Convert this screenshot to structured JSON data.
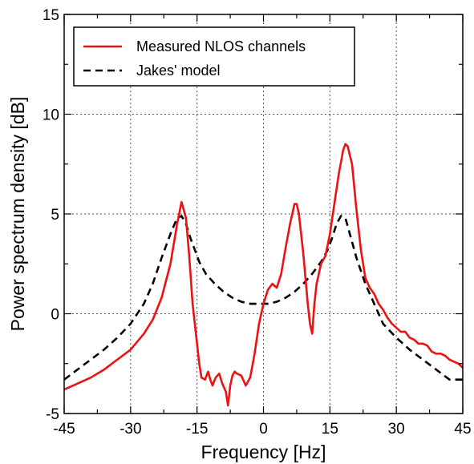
{
  "chart_data": {
    "type": "line",
    "xlabel": "Frequency [Hz]",
    "ylabel": "Power spectrum density [dB]",
    "xlim": [
      -45,
      45
    ],
    "ylim": [
      -5,
      15
    ],
    "xticks": [
      -45,
      -30,
      -15,
      0,
      15,
      30,
      45
    ],
    "xtick_labels": [
      "-45",
      "-30",
      "-15",
      "0",
      "15",
      "30",
      "45"
    ],
    "yticks": [
      -5,
      0,
      5,
      10,
      15
    ],
    "ytick_labels": [
      "-5",
      "0",
      "5",
      "10",
      "15"
    ],
    "grid": true,
    "legend_position": "top-left",
    "series": [
      {
        "name": "Measured NLOS channels",
        "color": "#ee1111",
        "style": "solid",
        "x": [
          -45,
          -42,
          -39,
          -36,
          -33,
          -30,
          -27,
          -25,
          -23,
          -21,
          -19.5,
          -18.5,
          -17.5,
          -16.8,
          -16,
          -15,
          -14.5,
          -14,
          -13.2,
          -12.5,
          -12,
          -11.5,
          -10.8,
          -10,
          -9.3,
          -8.5,
          -8,
          -7.5,
          -7,
          -6.5,
          -6,
          -5,
          -4,
          -3,
          -2,
          -1,
          0,
          1,
          2,
          3,
          4,
          5,
          6,
          7,
          7.5,
          8,
          9,
          10,
          10.5,
          11,
          11.5,
          12,
          13,
          14,
          15,
          16,
          17,
          18,
          18.5,
          19,
          20,
          21,
          22,
          23,
          24,
          25,
          26,
          27,
          28,
          29,
          30,
          31,
          32,
          33,
          34,
          35,
          36,
          37,
          38,
          39,
          40,
          41,
          42,
          43,
          44,
          45
        ],
        "y": [
          -3.8,
          -3.5,
          -3.2,
          -2.8,
          -2.3,
          -1.8,
          -1.0,
          -0.3,
          0.8,
          2.5,
          4.5,
          5.6,
          4.8,
          3.0,
          0.5,
          -1.5,
          -2.5,
          -3.2,
          -3.3,
          -2.9,
          -3.3,
          -3.6,
          -3.2,
          -3.0,
          -3.5,
          -3.9,
          -4.6,
          -3.6,
          -3.1,
          -2.9,
          -3.0,
          -3.1,
          -3.6,
          -3.2,
          -2.0,
          -0.5,
          0.5,
          1.2,
          1.5,
          1.3,
          2.0,
          3.3,
          4.5,
          5.5,
          5.5,
          5.0,
          3.0,
          0.5,
          -0.5,
          -1.0,
          0.5,
          1.5,
          2.5,
          2.9,
          4.0,
          5.5,
          7.0,
          8.2,
          8.5,
          8.4,
          7.5,
          5.2,
          3.2,
          1.8,
          1.3,
          1.0,
          0.5,
          0.2,
          -0.2,
          -0.5,
          -0.7,
          -0.9,
          -0.9,
          -1.2,
          -1.3,
          -1.5,
          -1.5,
          -1.6,
          -1.9,
          -2.0,
          -2.0,
          -2.1,
          -2.3,
          -2.4,
          -2.5,
          -2.7
        ]
      },
      {
        "name": "Jakes' model",
        "color": "#000000",
        "style": "dashed",
        "x": [
          -45,
          -42,
          -39,
          -36,
          -33,
          -30,
          -27,
          -25,
          -23,
          -21,
          -19.5,
          -18.5,
          -17.5,
          -16.5,
          -15.5,
          -14.5,
          -13,
          -11,
          -9,
          -7,
          -5,
          -3,
          -1,
          0,
          1,
          3,
          5,
          7,
          9,
          11,
          13,
          14.5,
          15.5,
          16.5,
          17.5,
          18.5,
          19.5,
          21,
          23,
          25,
          27,
          30,
          33,
          36,
          39,
          42,
          45
        ],
        "y": [
          -3.3,
          -2.8,
          -2.3,
          -1.8,
          -1.2,
          -0.5,
          0.5,
          1.5,
          2.8,
          4.0,
          4.8,
          4.9,
          4.5,
          3.8,
          3.2,
          2.6,
          2.0,
          1.5,
          1.1,
          0.8,
          0.6,
          0.5,
          0.5,
          0.5,
          0.5,
          0.6,
          0.8,
          1.1,
          1.5,
          2.0,
          2.6,
          3.2,
          3.8,
          4.5,
          4.9,
          4.8,
          4.0,
          2.8,
          1.5,
          0.5,
          -0.5,
          -1.2,
          -1.8,
          -2.3,
          -2.8,
          -3.3,
          -3.3
        ]
      }
    ]
  }
}
